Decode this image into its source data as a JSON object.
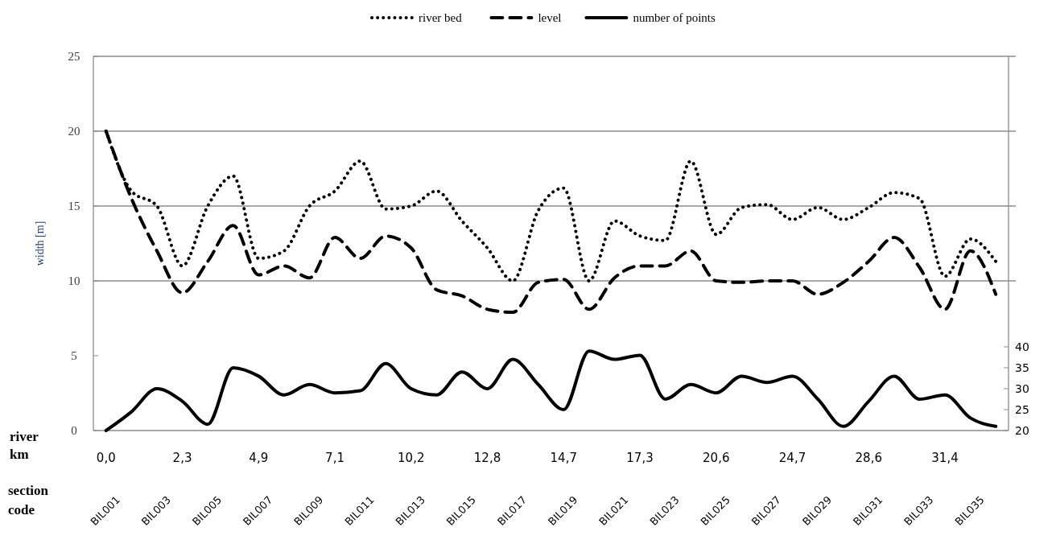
{
  "chart_data": {
    "type": "line",
    "categories": [
      "BIL001",
      null,
      "BIL003",
      null,
      "BIL005",
      null,
      "BIL007",
      null,
      "BIL009",
      null,
      "BIL011",
      null,
      "BIL013",
      null,
      "BIL015",
      null,
      "BIL017",
      null,
      "BIL019",
      null,
      "BIL021",
      null,
      "BIL023",
      null,
      "BIL025",
      null,
      "BIL027",
      null,
      "BIL029",
      null,
      "BIL031",
      null,
      "BIL033",
      null,
      "BIL035",
      null
    ],
    "xlabel": "section code",
    "ylabel": "width [m]",
    "annotations": [
      "river km",
      "0,0",
      "2,3",
      "4,9",
      "7,1",
      "10,2",
      "12,8",
      "14,7",
      "17,3",
      "20,6",
      "24,7",
      "28,6",
      "31,4"
    ],
    "ylim": [
      0,
      25
    ],
    "yticks": [
      0,
      5,
      10,
      15,
      20,
      25
    ],
    "y2lim": [
      20,
      109.4
    ],
    "y2ticks": [
      20,
      25,
      30,
      35,
      40
    ],
    "grid": "y",
    "legend": "top",
    "series": [
      {
        "name": "river bed",
        "color": "#000000",
        "line_style": "dotted",
        "values": [
          20,
          16,
          15,
          11,
          15,
          17,
          11.5,
          12,
          15,
          16,
          18,
          14.8,
          15,
          16,
          14,
          12.2,
          10,
          14.7,
          16.2,
          10,
          14,
          13,
          12.7,
          18,
          13.1,
          14.9,
          15.1,
          14.1,
          14.9,
          14.1,
          14.9,
          15.9,
          15.5,
          10.3,
          12.8,
          11.3
        ]
      },
      {
        "name": "level",
        "color": "#000000",
        "line_style": "dashed",
        "values": [
          20,
          15.5,
          12,
          9.2,
          11.3,
          13.7,
          10.4,
          11,
          10.2,
          12.9,
          11.5,
          13,
          12.2,
          9.4,
          9,
          8.1,
          7.9,
          9.9,
          10.1,
          8.1,
          10.2,
          11,
          11,
          12,
          10,
          9.9,
          10,
          10,
          9.1,
          9.9,
          11.3,
          12.9,
          10.9,
          8.1,
          12,
          9.1
        ]
      },
      {
        "name": "number of points",
        "color": "#000000",
        "line_style": "solid",
        "axis": "y2",
        "values": [
          20,
          24.5,
          30,
          27,
          21.5,
          35,
          33,
          28.5,
          31,
          29,
          29.5,
          36,
          30,
          28.5,
          34,
          30,
          37,
          31,
          25,
          39,
          37,
          38,
          27.5,
          31,
          29,
          33,
          31.5,
          33,
          27.5,
          21,
          27,
          33,
          27.5,
          28.5,
          23,
          21
        ]
      }
    ]
  }
}
